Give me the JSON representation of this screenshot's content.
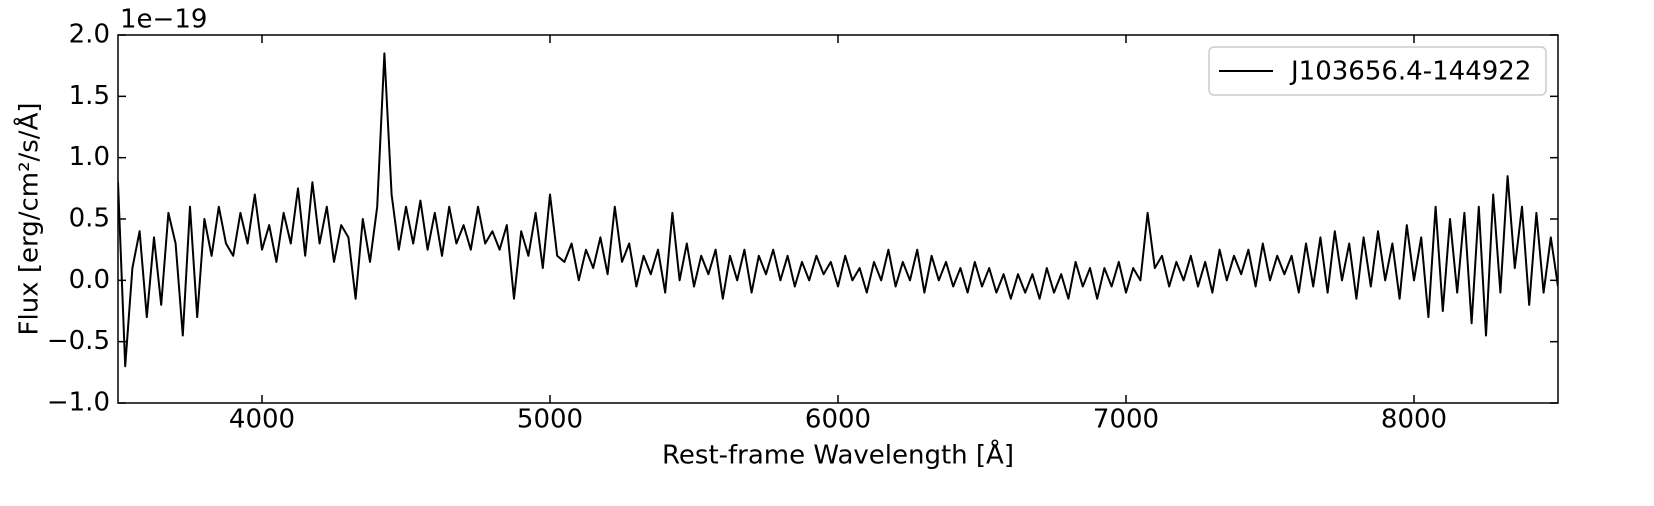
{
  "chart_data": {
    "type": "line",
    "y_offset_label": "1e−19",
    "xlabel": "Rest-frame Wavelength [Å]",
    "ylabel": "Flux [erg/cm²/s/Å]",
    "x": [
      3500,
      3525,
      3550,
      3575,
      3600,
      3625,
      3650,
      3675,
      3700,
      3725,
      3750,
      3775,
      3800,
      3825,
      3850,
      3875,
      3900,
      3925,
      3950,
      3975,
      4000,
      4025,
      4050,
      4075,
      4100,
      4125,
      4150,
      4175,
      4200,
      4225,
      4250,
      4275,
      4300,
      4325,
      4350,
      4375,
      4400,
      4425,
      4450,
      4475,
      4500,
      4525,
      4550,
      4575,
      4600,
      4625,
      4650,
      4675,
      4700,
      4725,
      4750,
      4775,
      4800,
      4825,
      4850,
      4875,
      4900,
      4925,
      4950,
      4975,
      5000,
      5025,
      5050,
      5075,
      5100,
      5125,
      5150,
      5175,
      5200,
      5225,
      5250,
      5275,
      5300,
      5325,
      5350,
      5375,
      5400,
      5425,
      5450,
      5475,
      5500,
      5525,
      5550,
      5575,
      5600,
      5625,
      5650,
      5675,
      5700,
      5725,
      5750,
      5775,
      5800,
      5825,
      5850,
      5875,
      5900,
      5925,
      5950,
      5975,
      6000,
      6025,
      6050,
      6075,
      6100,
      6125,
      6150,
      6175,
      6200,
      6225,
      6250,
      6275,
      6300,
      6325,
      6350,
      6375,
      6400,
      6425,
      6450,
      6475,
      6500,
      6525,
      6550,
      6575,
      6600,
      6625,
      6650,
      6675,
      6700,
      6725,
      6750,
      6775,
      6800,
      6825,
      6850,
      6875,
      6900,
      6925,
      6950,
      6975,
      7000,
      7025,
      7050,
      7075,
      7100,
      7125,
      7150,
      7175,
      7200,
      7225,
      7250,
      7275,
      7300,
      7325,
      7350,
      7375,
      7400,
      7425,
      7450,
      7475,
      7500,
      7525,
      7550,
      7575,
      7600,
      7625,
      7650,
      7675,
      7700,
      7725,
      7750,
      7775,
      7800,
      7825,
      7850,
      7875,
      7900,
      7925,
      7950,
      7975,
      8000,
      8025,
      8050,
      8075,
      8100,
      8125,
      8150,
      8175,
      8200,
      8225,
      8250,
      8275,
      8300,
      8325,
      8350,
      8375,
      8400,
      8425,
      8450,
      8475,
      8500
    ],
    "series": [
      {
        "name": "J103656.4-144922",
        "color": "#000000",
        "values": [
          0.8,
          -0.7,
          0.1,
          0.4,
          -0.3,
          0.35,
          -0.2,
          0.55,
          0.3,
          -0.45,
          0.6,
          -0.3,
          0.5,
          0.2,
          0.6,
          0.3,
          0.2,
          0.55,
          0.3,
          0.7,
          0.25,
          0.45,
          0.15,
          0.55,
          0.3,
          0.75,
          0.2,
          0.8,
          0.3,
          0.6,
          0.15,
          0.45,
          0.35,
          -0.15,
          0.5,
          0.15,
          0.6,
          1.85,
          0.7,
          0.25,
          0.6,
          0.3,
          0.65,
          0.25,
          0.55,
          0.2,
          0.6,
          0.3,
          0.45,
          0.25,
          0.6,
          0.3,
          0.4,
          0.25,
          0.45,
          -0.15,
          0.4,
          0.2,
          0.55,
          0.1,
          0.7,
          0.2,
          0.15,
          0.3,
          0.0,
          0.25,
          0.1,
          0.35,
          0.05,
          0.6,
          0.15,
          0.3,
          -0.05,
          0.2,
          0.05,
          0.25,
          -0.1,
          0.55,
          0.0,
          0.3,
          -0.05,
          0.2,
          0.05,
          0.25,
          -0.15,
          0.2,
          0.0,
          0.25,
          -0.1,
          0.2,
          0.05,
          0.25,
          0.0,
          0.2,
          -0.05,
          0.15,
          0.0,
          0.2,
          0.05,
          0.15,
          -0.05,
          0.2,
          0.0,
          0.1,
          -0.1,
          0.15,
          0.0,
          0.25,
          -0.05,
          0.15,
          0.0,
          0.25,
          -0.1,
          0.2,
          0.0,
          0.15,
          -0.05,
          0.1,
          -0.1,
          0.15,
          -0.05,
          0.1,
          -0.1,
          0.05,
          -0.15,
          0.05,
          -0.1,
          0.05,
          -0.15,
          0.1,
          -0.1,
          0.05,
          -0.15,
          0.15,
          -0.05,
          0.1,
          -0.15,
          0.1,
          -0.05,
          0.15,
          -0.1,
          0.1,
          0.0,
          0.55,
          0.1,
          0.2,
          -0.05,
          0.15,
          0.0,
          0.2,
          -0.05,
          0.15,
          -0.1,
          0.25,
          0.0,
          0.2,
          0.05,
          0.25,
          -0.05,
          0.3,
          0.0,
          0.2,
          0.05,
          0.2,
          -0.1,
          0.3,
          -0.05,
          0.35,
          -0.1,
          0.4,
          0.0,
          0.3,
          -0.15,
          0.35,
          -0.05,
          0.4,
          0.0,
          0.3,
          -0.15,
          0.45,
          0.0,
          0.35,
          -0.3,
          0.6,
          -0.25,
          0.5,
          -0.1,
          0.55,
          -0.35,
          0.6,
          -0.45,
          0.7,
          -0.1,
          0.85,
          0.1,
          0.6,
          -0.2,
          0.55,
          -0.1,
          0.35,
          -0.05
        ]
      }
    ],
    "xlim": [
      3500,
      8500
    ],
    "ylim": [
      -1,
      2
    ],
    "xticks": [
      4000,
      5000,
      6000,
      7000,
      8000
    ],
    "yticks": [
      {
        "value": -1,
        "label": "−1.0"
      },
      {
        "value": -0.5,
        "label": "−0.5"
      },
      {
        "value": 0,
        "label": "0.0"
      },
      {
        "value": 0.5,
        "label": "0.5"
      },
      {
        "value": 1,
        "label": "1.0"
      },
      {
        "value": 1.5,
        "label": "1.5"
      },
      {
        "value": 2,
        "label": "2.0"
      }
    ],
    "legend": "upper right",
    "grid": false
  }
}
